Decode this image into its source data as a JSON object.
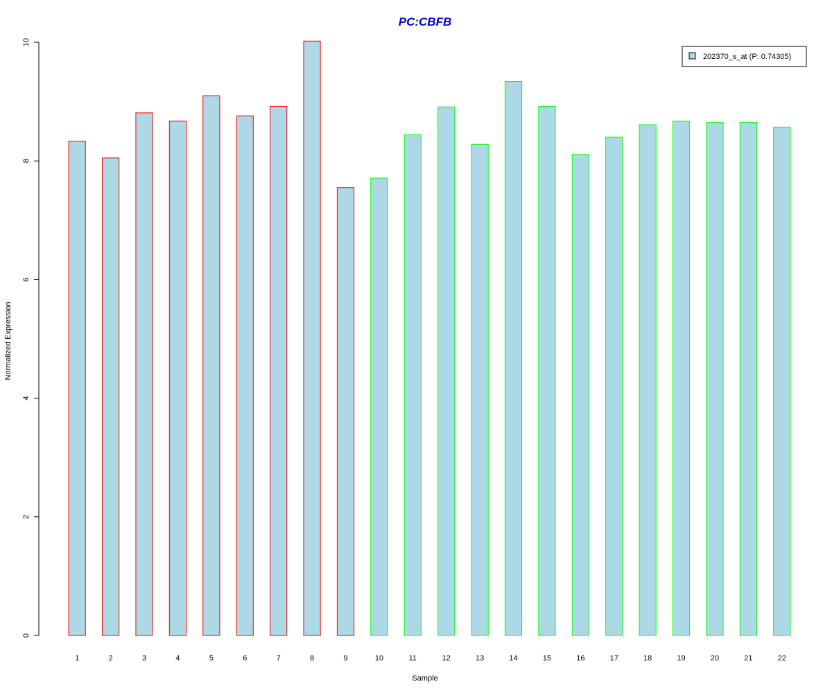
{
  "chart_data": {
    "type": "bar",
    "title": "PC:CBFB",
    "xlabel": "Sample",
    "ylabel": "Normalized Expression",
    "categories": [
      "1",
      "2",
      "3",
      "4",
      "5",
      "6",
      "7",
      "8",
      "9",
      "10",
      "11",
      "12",
      "13",
      "14",
      "15",
      "16",
      "17",
      "18",
      "19",
      "20",
      "21",
      "22"
    ],
    "series": [
      {
        "name": "202370_s_at (P: 0.74305)",
        "values": [
          8.33,
          8.05,
          8.81,
          8.67,
          9.1,
          8.76,
          8.92,
          10.02,
          7.55,
          7.71,
          8.44,
          8.91,
          8.28,
          9.34,
          8.92,
          8.11,
          8.4,
          8.61,
          8.67,
          8.65,
          8.65,
          8.57
        ]
      }
    ],
    "groups": [
      {
        "samples": [
          "1",
          "2",
          "3",
          "4",
          "5",
          "6",
          "7",
          "8",
          "9"
        ],
        "border_color": "#ff0000"
      },
      {
        "samples": [
          "10",
          "11",
          "12",
          "13",
          "14",
          "15",
          "16",
          "17",
          "18",
          "19",
          "20",
          "21",
          "22"
        ],
        "border_color": "#00ff00"
      }
    ],
    "ylim": [
      0,
      10
    ],
    "yticks": [
      "0",
      "2",
      "4",
      "6",
      "8",
      "10"
    ],
    "grid": false,
    "legend_position": "top-right",
    "colors": {
      "bar_fill": "#add8e6",
      "title": "#0000cd",
      "axis": "#000000"
    }
  }
}
